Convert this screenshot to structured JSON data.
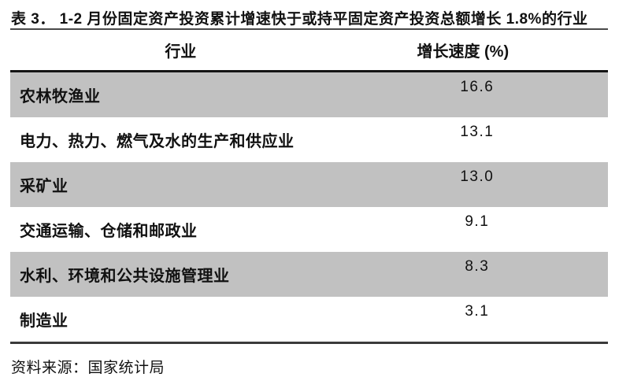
{
  "title": "表 3． 1-2 月份固定资产投资累计增速快于或持平固定资产投资总额增长 1.8%的行业",
  "table": {
    "columns": [
      "行业",
      "增长速度 (%)"
    ],
    "rows": [
      {
        "industry": "农林牧渔业",
        "value": "16.6"
      },
      {
        "industry": "电力、热力、燃气及水的生产和供应业",
        "value": "13.1"
      },
      {
        "industry": "采矿业",
        "value": "13.0"
      },
      {
        "industry": "交通运输、仓储和邮政业",
        "value": "9.1"
      },
      {
        "industry": "水利、环境和公共设施管理业",
        "value": "8.3"
      },
      {
        "industry": "制造业",
        "value": "3.1"
      }
    ]
  },
  "source": "资料来源：国家统计局",
  "colors": {
    "stripe": "#c1c1c1",
    "text": "#111111",
    "rule_title": "#4a4a4a",
    "rule_header": "#141414",
    "rule_bottom": "#3a3a3a"
  },
  "chart_data": {
    "type": "table",
    "title": "表 3． 1-2 月份固定资产投资累计增速快于或持平固定资产投资总额增长 1.8%的行业",
    "categories": [
      "农林牧渔业",
      "电力、热力、燃气及水的生产和供应业",
      "采矿业",
      "交通运输、仓储和邮政业",
      "水利、环境和公共设施管理业",
      "制造业"
    ],
    "values": [
      16.6,
      13.1,
      13.0,
      9.1,
      8.3,
      3.1
    ],
    "xlabel": "行业",
    "ylabel": "增长速度 (%)"
  }
}
